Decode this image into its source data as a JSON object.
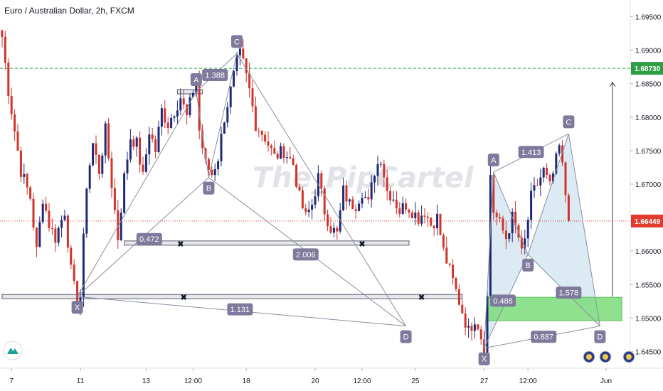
{
  "chart_title": "Euro / Australian Dollar, 2h, FXCM",
  "watermark": "The_PipCartel",
  "colors": {
    "bull": "#1e2a78",
    "bear": "#d0342c",
    "dashed_green": "#2aa84a",
    "dotted_red": "#d0342c",
    "pattern_fill": "#cfe3ef",
    "zone_fill": "#7ddc7a",
    "label_bg": "#7e7a9c",
    "price_green": "#2e9e45",
    "price_red": "#e23b2e"
  },
  "chart_data": {
    "type": "candlestick",
    "title": "Euro / Australian Dollar, 2h, FXCM",
    "y_min": 1.6425,
    "y_max": 1.6975,
    "x_min": 0,
    "x_max": 184,
    "y_ticks": [
      "1.69500",
      "1.69000",
      "1.68500",
      "1.68000",
      "1.67500",
      "1.67000",
      "1.66500",
      "1.66000",
      "1.65500",
      "1.65000",
      "1.64500"
    ],
    "x_ticks": [
      {
        "label": "7",
        "x": 3
      },
      {
        "label": "11",
        "x": 25
      },
      {
        "label": "13",
        "x": 46
      },
      {
        "label": "12:00",
        "x": 61
      },
      {
        "label": "18",
        "x": 78
      },
      {
        "label": "20",
        "x": 100
      },
      {
        "label": "12:00",
        "x": 115
      },
      {
        "label": "25",
        "x": 132
      },
      {
        "label": "27",
        "x": 154
      },
      {
        "label": "12:00",
        "x": 168
      },
      {
        "label": "Jun",
        "x": 185
      }
    ],
    "price_labels": [
      {
        "name": "target",
        "value": 1.6873,
        "text": "1.68730",
        "color": "green"
      },
      {
        "name": "current",
        "value": 1.66449,
        "text": "1.66449",
        "color": "red"
      }
    ],
    "candle_anchors": [
      [
        0,
        1.692
      ],
      [
        2,
        1.684
      ],
      [
        4,
        1.678
      ],
      [
        6,
        1.672
      ],
      [
        9,
        1.668
      ],
      [
        11,
        1.66
      ],
      [
        13,
        1.668
      ],
      [
        15,
        1.664
      ],
      [
        17,
        1.662
      ],
      [
        20,
        1.666
      ],
      [
        22,
        1.657
      ],
      [
        24,
        1.652
      ],
      [
        25,
        1.6532
      ],
      [
        27,
        1.67
      ],
      [
        29,
        1.676
      ],
      [
        31,
        1.672
      ],
      [
        33,
        1.678
      ],
      [
        35,
        1.67
      ],
      [
        37,
        1.662
      ],
      [
        39,
        1.671
      ],
      [
        41,
        1.677
      ],
      [
        43,
        1.676
      ],
      [
        45,
        1.671
      ],
      [
        47,
        1.678
      ],
      [
        49,
        1.675
      ],
      [
        51,
        1.681
      ],
      [
        53,
        1.679
      ],
      [
        55,
        1.681
      ],
      [
        57,
        1.683
      ],
      [
        59,
        1.68
      ],
      [
        61,
        1.684
      ],
      [
        62,
        1.6855
      ],
      [
        63,
        1.678
      ],
      [
        65,
        1.673
      ],
      [
        67,
        1.6715
      ],
      [
        69,
        1.674
      ],
      [
        71,
        1.68
      ],
      [
        73,
        1.684
      ],
      [
        75,
        1.6882
      ],
      [
        76,
        1.6893
      ],
      [
        77,
        1.688
      ],
      [
        79,
        1.684
      ],
      [
        81,
        1.679
      ],
      [
        84,
        1.677
      ],
      [
        87,
        1.674
      ],
      [
        90,
        1.675
      ],
      [
        93,
        1.673
      ],
      [
        95,
        1.668
      ],
      [
        97,
        1.665
      ],
      [
        99,
        1.667
      ],
      [
        101,
        1.671
      ],
      [
        103,
        1.666
      ],
      [
        105,
        1.6635
      ],
      [
        107,
        1.6625
      ],
      [
        109,
        1.669
      ],
      [
        111,
        1.667
      ],
      [
        113,
        1.667
      ],
      [
        115,
        1.669
      ],
      [
        117,
        1.667
      ],
      [
        119,
        1.672
      ],
      [
        121,
        1.674
      ],
      [
        123,
        1.669
      ],
      [
        125,
        1.668
      ],
      [
        127,
        1.666
      ],
      [
        129,
        1.667
      ],
      [
        131,
        1.666
      ],
      [
        133,
        1.665
      ],
      [
        135,
        1.666
      ],
      [
        137,
        1.664
      ],
      [
        139,
        1.665
      ],
      [
        141,
        1.66
      ],
      [
        143,
        1.657
      ],
      [
        145,
        1.654
      ],
      [
        147,
        1.651
      ],
      [
        149,
        1.648
      ],
      [
        151,
        1.65
      ],
      [
        152,
        1.649
      ],
      [
        154,
        1.6455
      ],
      [
        155,
        1.653
      ],
      [
        156,
        1.6715
      ],
      [
        157,
        1.666
      ],
      [
        159,
        1.664
      ],
      [
        161,
        1.662
      ],
      [
        163,
        1.665
      ],
      [
        165,
        1.662
      ],
      [
        166,
        1.6595
      ],
      [
        167,
        1.6615
      ],
      [
        169,
        1.668
      ],
      [
        171,
        1.67
      ],
      [
        173,
        1.672
      ],
      [
        175,
        1.6695
      ],
      [
        177,
        1.6735
      ],
      [
        178,
        1.6755
      ],
      [
        179,
        1.6725
      ],
      [
        180,
        1.6685
      ],
      [
        181,
        1.6645
      ]
    ],
    "levels": [
      {
        "name": "upper-support",
        "x0": 39,
        "x1": 130,
        "y": 1.6612,
        "cross_marks": [
          57,
          115
        ]
      },
      {
        "name": "lower-support",
        "x0": 0,
        "x1": 147,
        "y": 1.6532,
        "cross_marks": [
          58,
          134
        ]
      },
      {
        "name": "a-level",
        "x0": 56,
        "x1": 64,
        "y": 1.6838
      }
    ],
    "patterns": [
      {
        "name": "pattern-1",
        "points": {
          "X": [
            24,
            1.6532
          ],
          "A": [
            62,
            1.6838
          ],
          "B": [
            66,
            1.671
          ],
          "C": [
            75,
            1.6895
          ],
          "D": [
            129,
            1.6488
          ]
        },
        "points_labels": {
          "X": "X",
          "A": "A",
          "B": "B",
          "C": "C",
          "D": "D"
        },
        "ratios": [
          {
            "text": "0.472",
            "anchor": [
              47,
              1.6618
            ]
          },
          {
            "text": "1.388",
            "anchor": [
              68,
              1.6863
            ]
          },
          {
            "text": "2.006",
            "anchor": [
              97,
              1.6595
            ]
          },
          {
            "text": "1.131",
            "anchor": [
              76,
              1.6513
            ]
          }
        ]
      },
      {
        "name": "pattern-2",
        "points": {
          "X": [
            154,
            1.6455
          ],
          "A": [
            157,
            1.6718
          ],
          "B": [
            168,
            1.6595
          ],
          "C": [
            181,
            1.6775
          ],
          "D": [
            191,
            1.6488
          ]
        },
        "points_labels": {
          "X": "X",
          "A": "A",
          "B": "B",
          "C": "C",
          "D": "D"
        },
        "ratios": [
          {
            "text": "0.488",
            "anchor": [
              160,
              1.6526
            ]
          },
          {
            "text": "1.413",
            "anchor": [
              169,
              1.6748
            ]
          },
          {
            "text": "1.578",
            "anchor": [
              181,
              1.6538
            ]
          },
          {
            "text": "0.887",
            "anchor": [
              173,
              1.6472
            ]
          }
        ]
      }
    ],
    "zones": [
      {
        "name": "green-target-zone",
        "x0": 155,
        "x1": 198,
        "y0": 1.6496,
        "y1": 1.6531
      }
    ],
    "arrow": {
      "x": 195,
      "y_from": 1.6532,
      "y_to": 1.6852
    }
  }
}
